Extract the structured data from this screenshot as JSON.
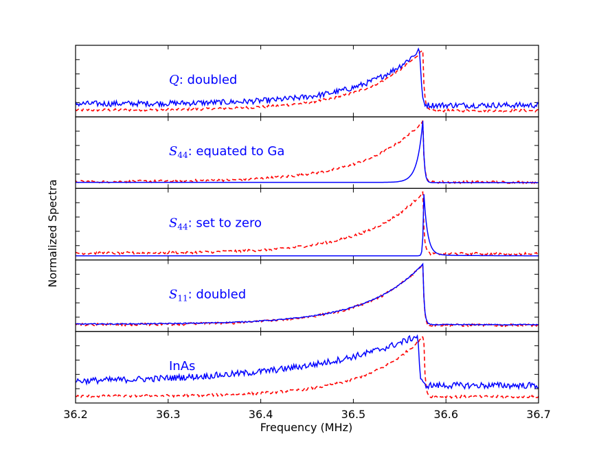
{
  "chart_data": {
    "type": "line",
    "layout": "stacked-panels",
    "xlabel": "Frequency (MHz)",
    "ylabel": "Normalized Spectra",
    "xlim": [
      36.2,
      36.7
    ],
    "x_ticks": [
      "36.2",
      "36.3",
      "36.4",
      "36.5",
      "36.6",
      "36.7"
    ],
    "x_tick_values": [
      36.2,
      36.3,
      36.4,
      36.5,
      36.6,
      36.7
    ],
    "series_styles": {
      "reference": {
        "color": "#ff0000",
        "style": "dashed"
      },
      "simulated": {
        "color": "#0000ff",
        "style": "solid"
      }
    },
    "panels": [
      {
        "annotation": {
          "symbol": "Q",
          "subscript": "",
          "text": ": doubled"
        },
        "reference": {
          "peak": 36.575,
          "height": 1.0,
          "wing": 0.06,
          "base": 0.04
        },
        "simulated": {
          "peak": 36.572,
          "height": 1.0,
          "wing": 0.06,
          "base": 0.14,
          "noise": 0.045
        }
      },
      {
        "annotation": {
          "symbol": "S",
          "subscript": "44",
          "text": ": equated to Ga"
        },
        "reference": {
          "peak": 36.575,
          "height": 1.0,
          "wing": 0.06,
          "base": 0.04
        },
        "simulated": {
          "peak": 36.575,
          "height": 1.0,
          "wing": 0.006,
          "base": 0.03,
          "noise": 0.0
        }
      },
      {
        "annotation": {
          "symbol": "S",
          "subscript": "44",
          "text": ": set to zero"
        },
        "reference": {
          "peak": 36.575,
          "height": 1.0,
          "wing": 0.06,
          "base": 0.04
        },
        "simulated": {
          "peak": 36.576,
          "height": 1.0,
          "wing": 0.0,
          "base": 0.0,
          "noise": 0.0
        }
      },
      {
        "annotation": {
          "symbol": "S",
          "subscript": "11",
          "text": ": doubled"
        },
        "reference": {
          "peak": 36.575,
          "height": 1.0,
          "wing": 0.06,
          "base": 0.04
        },
        "simulated": {
          "peak": 36.575,
          "height": 1.0,
          "wing": 0.06,
          "base": 0.05,
          "noise": 0.008
        }
      },
      {
        "annotation": {
          "symbol": "",
          "subscript": "",
          "text": "InAs"
        },
        "reference": {
          "peak": 36.576,
          "height": 1.0,
          "wing": 0.06,
          "base": 0.04
        },
        "simulated": {
          "peak": 36.57,
          "height": 1.0,
          "wing": 0.12,
          "base": 0.25,
          "noise": 0.05
        }
      }
    ]
  }
}
